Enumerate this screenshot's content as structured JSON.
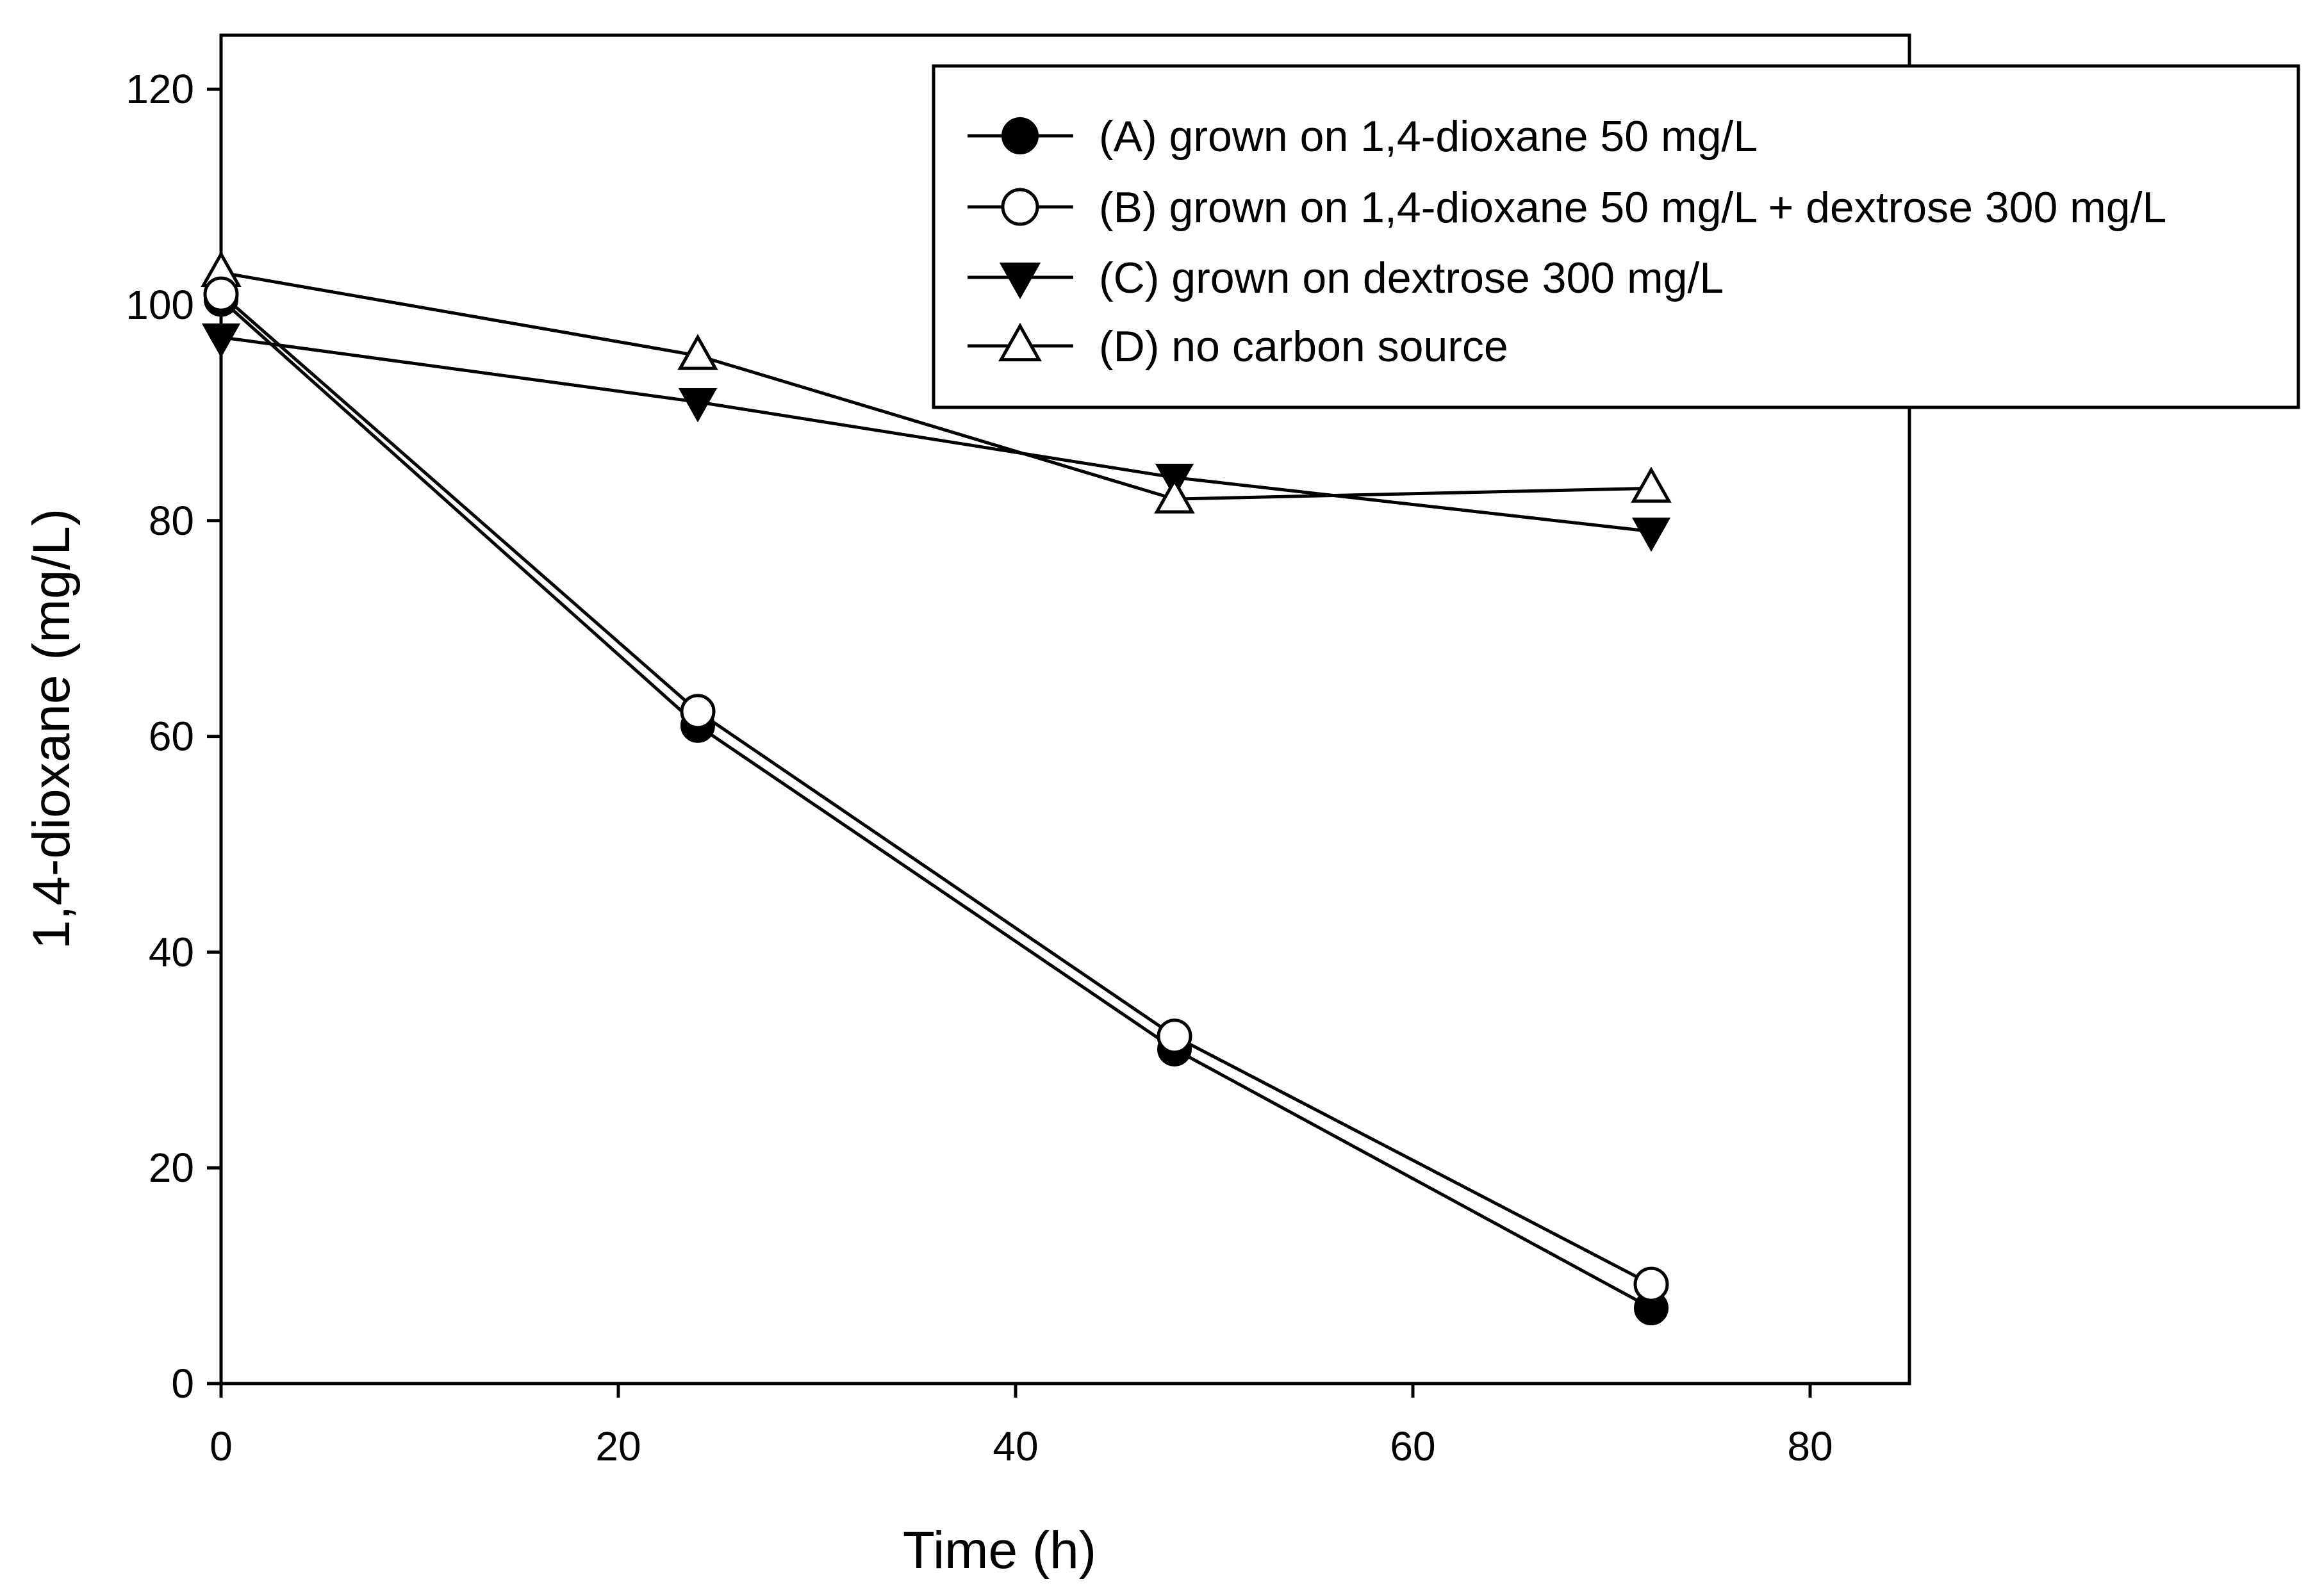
{
  "chart_data": {
    "type": "line",
    "title": "",
    "xlabel": "Time (h)",
    "ylabel": "1,4-dioxane (mg/L)",
    "xlim": [
      0,
      85
    ],
    "ylim": [
      0,
      125
    ],
    "xticks": [
      0,
      20,
      40,
      60,
      80
    ],
    "yticks": [
      0,
      20,
      40,
      60,
      80,
      100,
      120
    ],
    "xtick_labels": [
      "0",
      "20",
      "40",
      "60",
      "80"
    ],
    "ytick_labels": [
      "0",
      "20",
      "40",
      "60",
      "80",
      "100",
      "120"
    ],
    "grid": false,
    "legend_position": "top-right",
    "x": [
      0,
      24,
      48,
      72
    ],
    "series": [
      {
        "name": "(A) grown on 1,4-dioxane 50 mg/L",
        "marker": "filled-circle",
        "values": [
          100.5,
          61,
          31,
          7
        ]
      },
      {
        "name": "(B) grown on 1,4-dioxane 50 mg/L + dextrose 300 mg/L",
        "marker": "open-circle",
        "values": [
          101,
          62.3,
          32.2,
          9.2
        ]
      },
      {
        "name": "(C) grown on dextrose 300 mg/L",
        "marker": "filled-triangle-down",
        "values": [
          97,
          91,
          84,
          79
        ]
      },
      {
        "name": "(D) no carbon source",
        "marker": "open-triangle-up",
        "values": [
          103,
          95.3,
          82,
          83
        ]
      }
    ]
  }
}
